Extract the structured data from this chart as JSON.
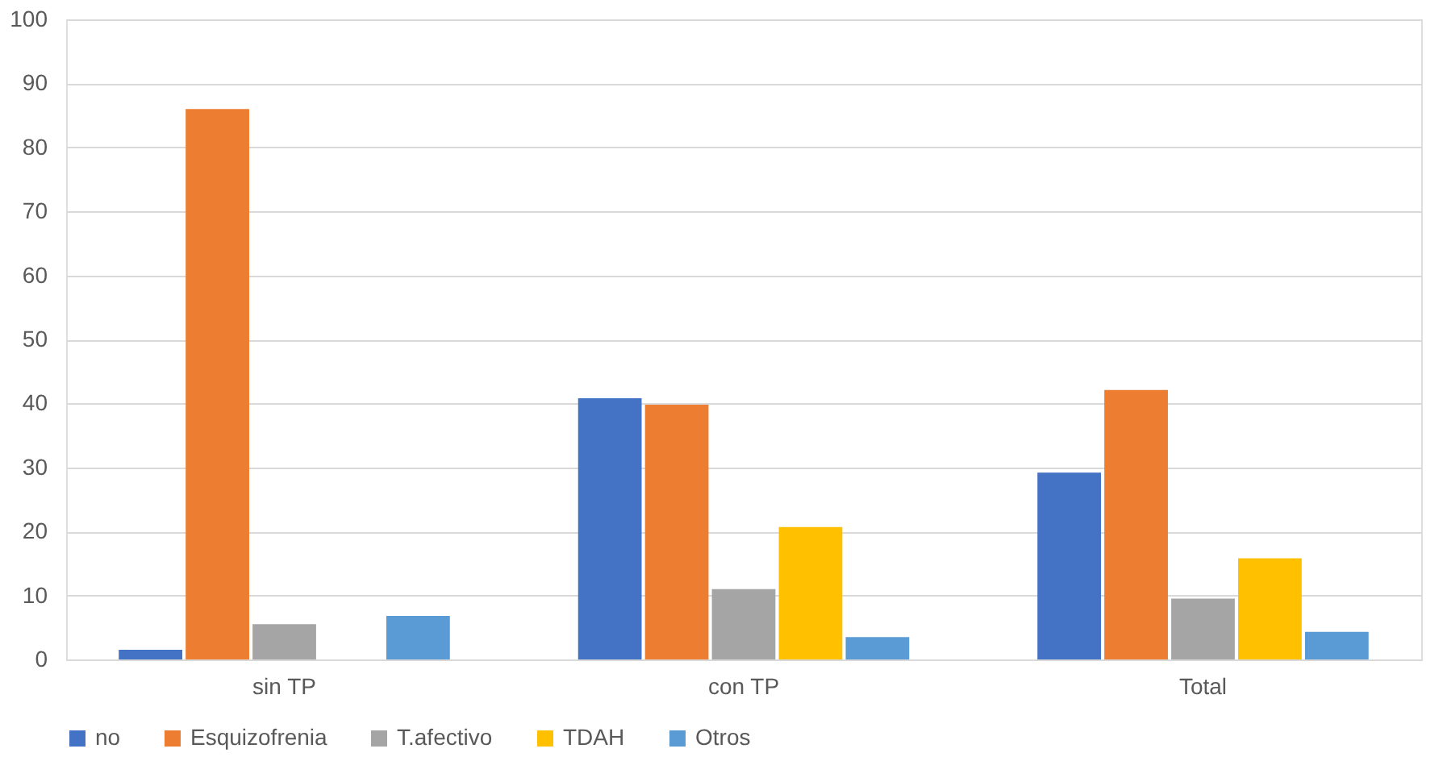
{
  "chart_data": {
    "type": "bar",
    "categories": [
      "sin TP",
      "con TP",
      "Total"
    ],
    "series": [
      {
        "name": "no",
        "color": "#4472c4",
        "values": [
          1.5,
          40.8,
          29.2
        ]
      },
      {
        "name": "Esquizofrenia",
        "color": "#ed7d31",
        "values": [
          86,
          39.8,
          42.1
        ]
      },
      {
        "name": "T.afectivo",
        "color": "#a5a5a5",
        "values": [
          5.5,
          11,
          9.5
        ]
      },
      {
        "name": "TDAH",
        "color": "#ffc000",
        "values": [
          0,
          20.7,
          15.8
        ]
      },
      {
        "name": "Otros",
        "color": "#5b9bd5",
        "values": [
          6.8,
          3.5,
          4.3
        ]
      }
    ],
    "ylim": [
      0,
      100
    ],
    "yticks": [
      0,
      10,
      20,
      30,
      40,
      50,
      60,
      70,
      80,
      90,
      100
    ],
    "grid": "y",
    "legend": "bottom"
  }
}
